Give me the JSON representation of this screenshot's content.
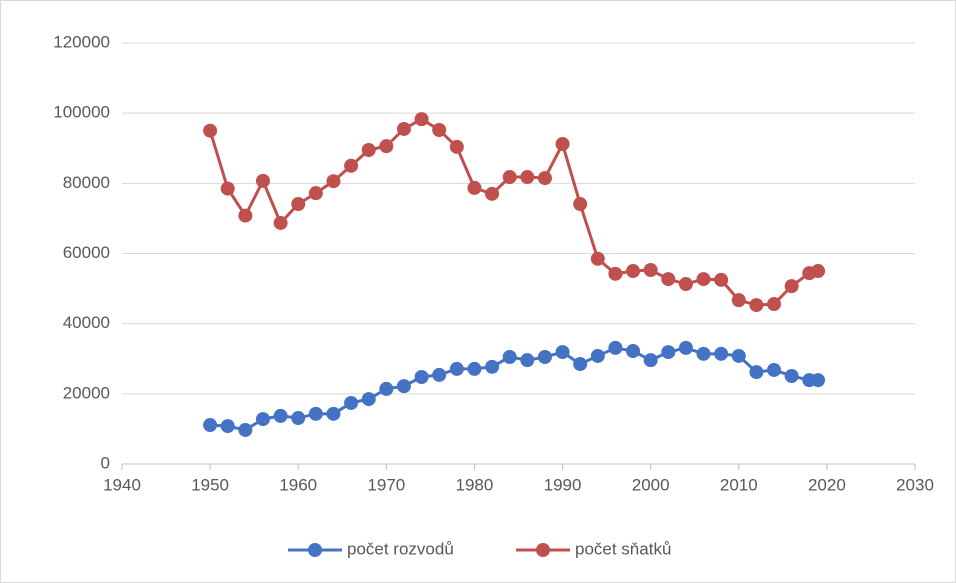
{
  "chart_data": {
    "type": "line",
    "x": [
      1950,
      1952,
      1954,
      1956,
      1958,
      1960,
      1962,
      1964,
      1966,
      1968,
      1970,
      1972,
      1974,
      1976,
      1978,
      1980,
      1982,
      1984,
      1986,
      1988,
      1990,
      1992,
      1994,
      1996,
      1998,
      2000,
      2002,
      2004,
      2006,
      2008,
      2010,
      2012,
      2014,
      2016,
      2018,
      2019
    ],
    "series": [
      {
        "name": "počet rozvodů",
        "color": "#4472c4",
        "values": [
          11100,
          10800,
          9700,
          12800,
          13700,
          13100,
          14300,
          14300,
          17400,
          18500,
          21400,
          22200,
          24800,
          25400,
          27100,
          27100,
          27700,
          30500,
          29600,
          30500,
          31900,
          28500,
          30800,
          33100,
          32200,
          29600,
          31900,
          33100,
          31400,
          31400,
          30800,
          26200,
          26800,
          25100,
          23900,
          23900
        ]
      },
      {
        "name": "počet sňatků",
        "color": "#c0504d",
        "values": [
          95000,
          78500,
          70800,
          80700,
          68700,
          74100,
          77200,
          80600,
          85000,
          89500,
          90600,
          95500,
          98300,
          95200,
          90400,
          78700,
          77000,
          81800,
          81800,
          81500,
          91200,
          74100,
          58500,
          54200,
          55000,
          55300,
          52700,
          51300,
          52700,
          52500,
          46700,
          45300,
          45600,
          50700,
          54400,
          55000
        ]
      }
    ],
    "xlim": [
      1940,
      2030
    ],
    "xticks": [
      1940,
      1950,
      1960,
      1970,
      1980,
      1990,
      2000,
      2010,
      2020,
      2030
    ],
    "ylim": [
      0,
      120000
    ],
    "yticks": [
      0,
      20000,
      40000,
      60000,
      80000,
      100000,
      120000
    ],
    "grid": true,
    "legend": "bottom"
  }
}
